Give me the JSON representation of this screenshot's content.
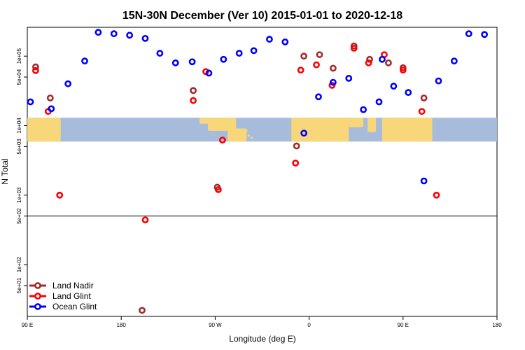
{
  "chart_data": {
    "type": "scatter",
    "title": "15N-30N December (Ver 10)   2015-01-01 to 2020-12-18",
    "xlabel": "Longitude (deg E)",
    "ylabel": "N Total",
    "x_ticks": [
      {
        "value": 90,
        "label": "90 E"
      },
      {
        "value": 180,
        "label": "180"
      },
      {
        "value": 270,
        "label": "90 W"
      },
      {
        "value": 360,
        "label": "0"
      },
      {
        "value": 450,
        "label": "90 E"
      },
      {
        "value": 540,
        "label": "180"
      }
    ],
    "xlim": [
      90,
      540
    ],
    "y_scale": "log",
    "ylim": [
      18,
      260000
    ],
    "y_ticks": [
      {
        "value": 50,
        "label": "5e+01"
      },
      {
        "value": 100,
        "label": "1e+02"
      },
      {
        "value": 500,
        "label": "5e+02"
      },
      {
        "value": 1000,
        "label": "1e+03"
      },
      {
        "value": 5000,
        "label": "5e+03"
      },
      {
        "value": 10000,
        "label": "1e+04"
      },
      {
        "value": 50000,
        "label": "5e+04"
      },
      {
        "value": 100000,
        "label": "1e+05"
      }
    ],
    "reference_line": {
      "y": 500
    },
    "map_band": {
      "y_from": 5900,
      "y_to": 13000
    },
    "legend": {
      "position": "bottom-left",
      "entries": [
        {
          "label": "Land Nadir",
          "color": "#a52a2a"
        },
        {
          "label": "Land Glint",
          "color": "#ff0000"
        },
        {
          "label": "Ocean Glint",
          "color": "#0000ff"
        }
      ]
    },
    "series": [
      {
        "name": "Land Nadir",
        "color": "#a52a2a",
        "points": [
          [
            98,
            70000
          ],
          [
            112,
            25000
          ],
          [
            200,
            22
          ],
          [
            249,
            32000
          ],
          [
            272,
            1300
          ],
          [
            348,
            5100
          ],
          [
            355,
            100000
          ],
          [
            370,
            105000
          ],
          [
            383,
            67000
          ],
          [
            403,
            140000
          ],
          [
            418,
            90000
          ],
          [
            436,
            80000
          ],
          [
            450,
            68000
          ],
          [
            470,
            25000
          ]
        ]
      },
      {
        "name": "Land Glint",
        "color": "#ff0000",
        "points": [
          [
            98,
            62000
          ],
          [
            110,
            16000
          ],
          [
            121,
            1000
          ],
          [
            203,
            440
          ],
          [
            249,
            23000
          ],
          [
            261,
            60000
          ],
          [
            277,
            6200
          ],
          [
            347,
            2900
          ],
          [
            352,
            63000
          ],
          [
            367,
            75000
          ],
          [
            382,
            38000
          ],
          [
            403,
            130000
          ],
          [
            417,
            80000
          ],
          [
            432,
            105000
          ],
          [
            450,
            63000
          ],
          [
            468,
            16000
          ],
          [
            482,
            1000
          ],
          [
            273,
            1200
          ]
        ]
      },
      {
        "name": "Ocean Glint",
        "color": "#0000ff",
        "points": [
          [
            93,
            22000
          ],
          [
            113,
            17500
          ],
          [
            129,
            40000
          ],
          [
            145,
            85000
          ],
          [
            158,
            220000
          ],
          [
            173,
            210000
          ],
          [
            188,
            200000
          ],
          [
            203,
            180000
          ],
          [
            217,
            110000
          ],
          [
            232,
            80000
          ],
          [
            248,
            83000
          ],
          [
            264,
            57000
          ],
          [
            278,
            90000
          ],
          [
            293,
            110000
          ],
          [
            307,
            120000
          ],
          [
            322,
            175000
          ],
          [
            337,
            160000
          ],
          [
            355,
            7800
          ],
          [
            369,
            26000
          ],
          [
            383,
            42000
          ],
          [
            398,
            48000
          ],
          [
            412,
            17000
          ],
          [
            427,
            22000
          ],
          [
            441,
            37000
          ],
          [
            455,
            30000
          ],
          [
            470,
            1600
          ],
          [
            484,
            44000
          ],
          [
            499,
            85000
          ],
          [
            513,
            210000
          ],
          [
            528,
            205000
          ],
          [
            430,
            90000
          ]
        ]
      }
    ]
  }
}
